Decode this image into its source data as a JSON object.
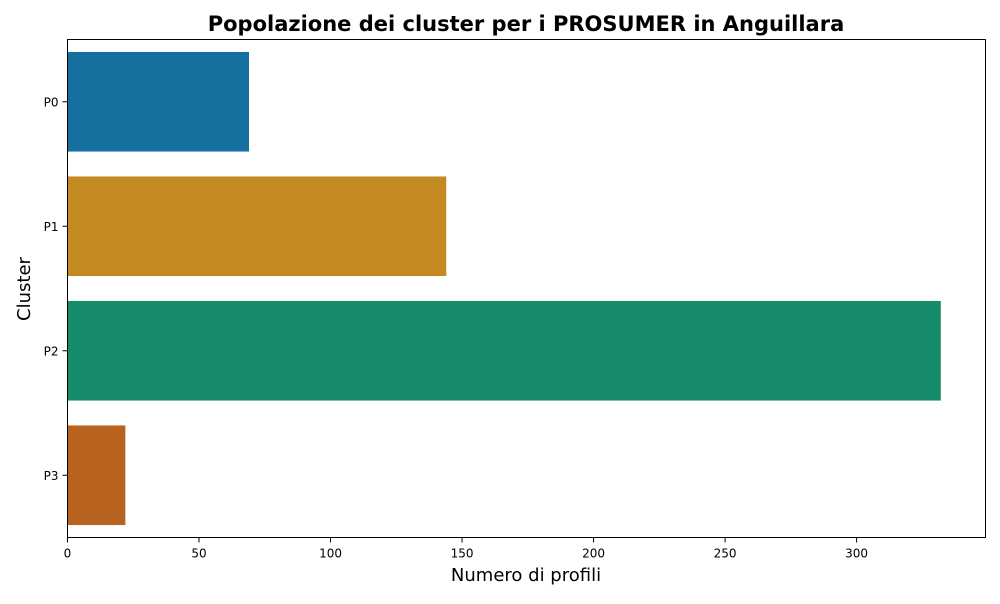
{
  "chart_data": {
    "type": "bar",
    "orientation": "horizontal",
    "title": "Popolazione dei cluster per i PROSUMER in Anguillara",
    "xlabel": "Numero di profili",
    "ylabel": "Cluster",
    "categories": [
      "P0",
      "P1",
      "P2",
      "P3"
    ],
    "values": [
      69,
      144,
      332,
      22
    ],
    "colors": [
      "#1570a0",
      "#c48a21",
      "#178c6d",
      "#b8621f"
    ],
    "xlim": [
      0,
      349
    ],
    "xticks": [
      0,
      50,
      100,
      150,
      200,
      250,
      300
    ],
    "grid": false,
    "legend": "none"
  }
}
